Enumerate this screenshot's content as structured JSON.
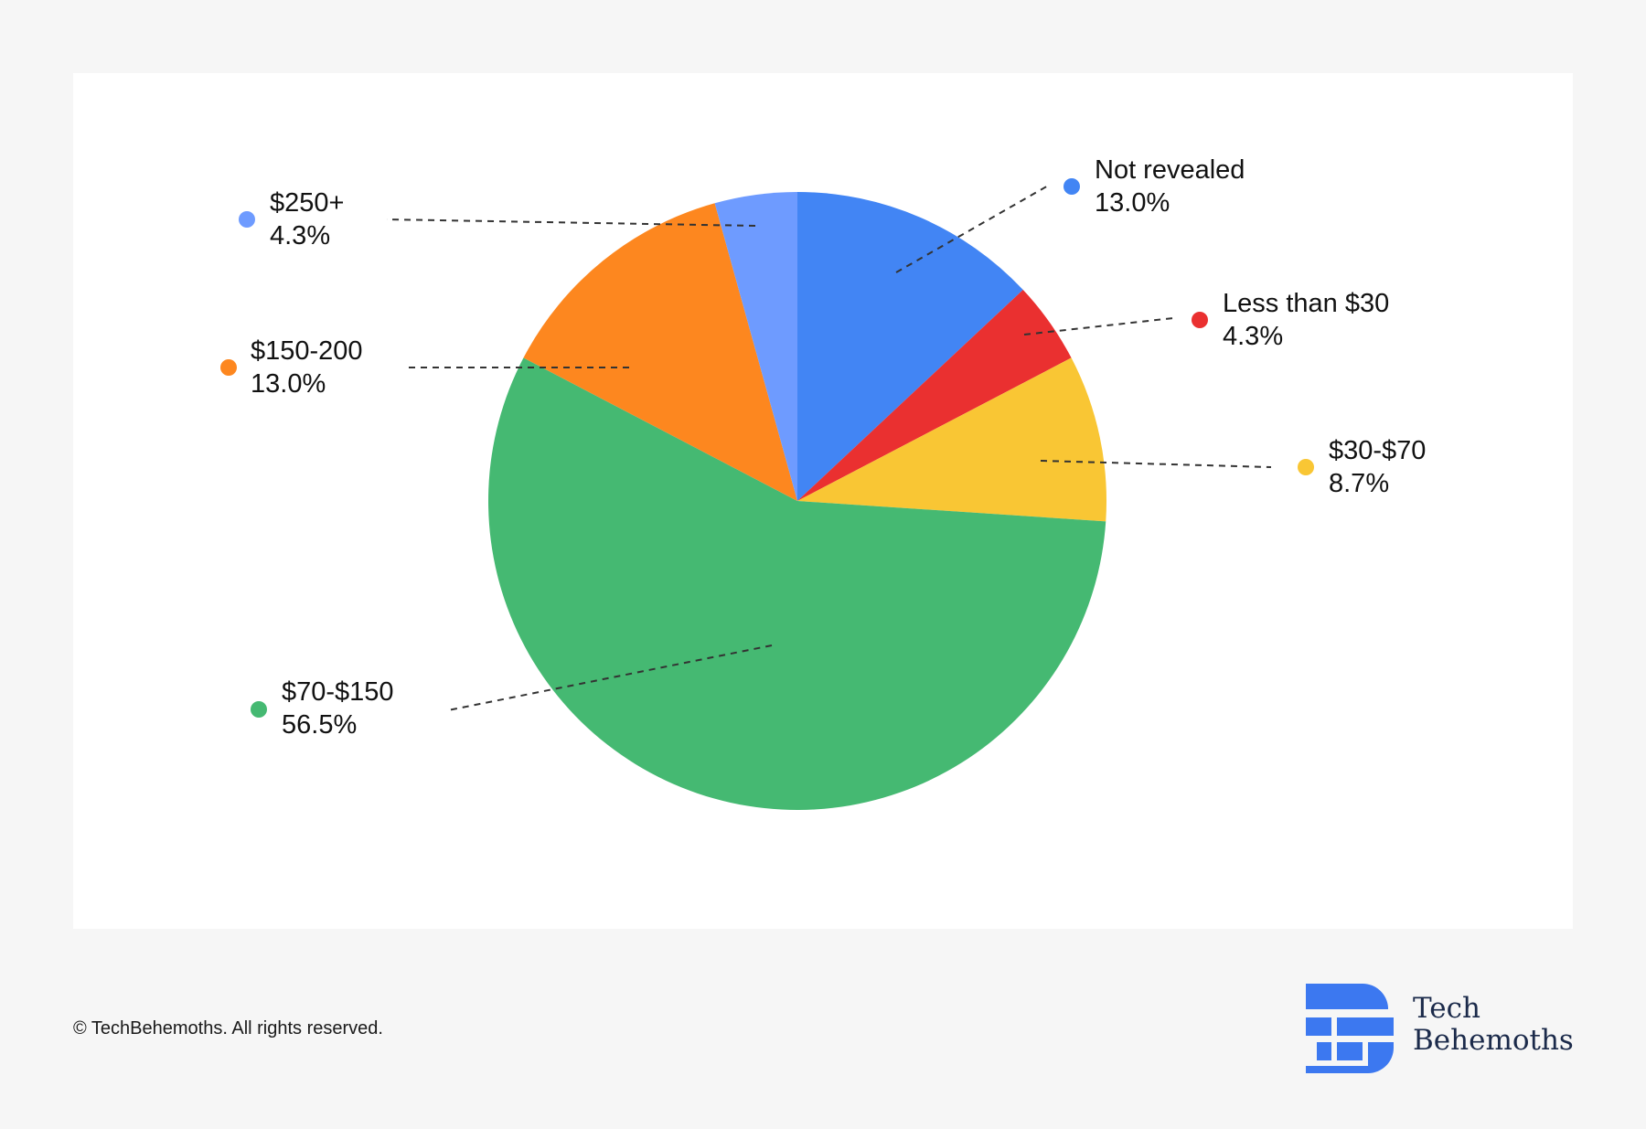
{
  "chart_data": {
    "type": "pie",
    "slices": [
      {
        "name": "Not revealed",
        "value": 13.0,
        "label": "13.0%",
        "color": "#4285f4"
      },
      {
        "name": "Less than $30",
        "value": 4.3,
        "label": "4.3%",
        "color": "#ea3030"
      },
      {
        "name": "$30-$70",
        "value": 8.7,
        "label": "8.7%",
        "color": "#f9c634"
      },
      {
        "name": "$70-$150",
        "value": 56.5,
        "label": "56.5%",
        "color": "#45b972"
      },
      {
        "name": "$150-200",
        "value": 13.0,
        "label": "13.0%",
        "color": "#fd871f"
      },
      {
        "name": "$250+",
        "value": 4.3,
        "label": "4.3%",
        "color": "#6e9bff"
      }
    ],
    "start_angle": "12 o'clock",
    "direction": "clockwise",
    "labels": "outside with dashed leader lines"
  },
  "footer": {
    "copyright": "© TechBehemoths. All rights reserved."
  },
  "brand": {
    "line1": "Tech",
    "line2": "Behemoths",
    "color": "#1b2a4a",
    "logo_color": "#3c78f0",
    "logo_icon": "tb-logo-icon"
  }
}
